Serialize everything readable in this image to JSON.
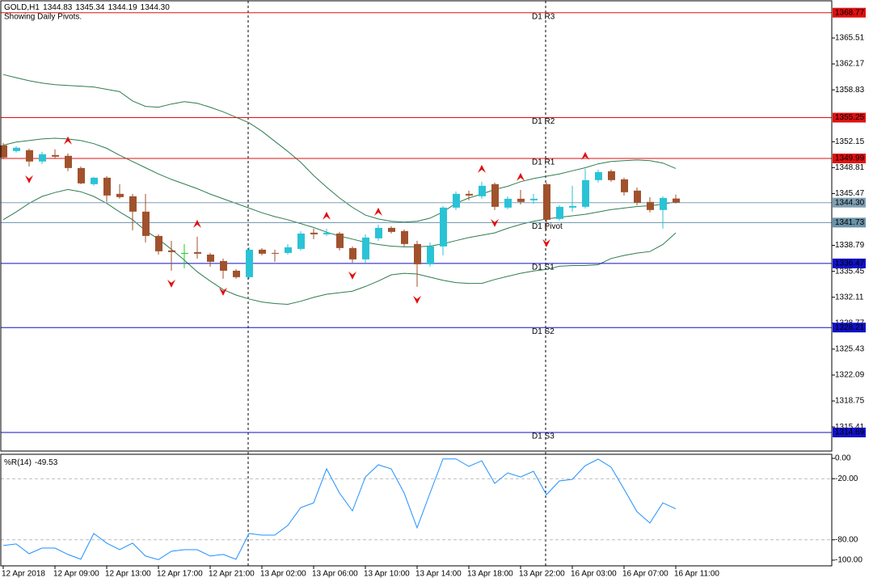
{
  "chart_data": [
    {
      "type": "candlestick",
      "title": "GOLD,H1",
      "header_values": [
        "1344.83",
        "1345.34",
        "1344.19",
        "1344.30"
      ],
      "subtitle": "Showing Daily Pivots.",
      "categories": [
        "12 Apr 2018",
        null,
        null,
        null,
        "12 Apr 09:00",
        null,
        null,
        null,
        "12 Apr 13:00",
        null,
        null,
        null,
        "12 Apr 17:00",
        null,
        null,
        null,
        "12 Apr 21:00",
        null,
        null,
        null,
        "13 Apr 02:00",
        null,
        null,
        null,
        "13 Apr 06:00",
        null,
        null,
        null,
        "13 Apr 10:00",
        null,
        null,
        null,
        "13 Apr 14:00",
        null,
        null,
        null,
        "13 Apr 18:00",
        null,
        null,
        null,
        "13 Apr 22:00",
        null,
        null,
        null,
        "16 Apr 03:00",
        null,
        null,
        null,
        "16 Apr 07:00",
        null,
        null,
        null,
        "16 Apr 11:00"
      ],
      "open": [
        1351.68,
        1350.95,
        1351.06,
        1349.6,
        1350.43,
        1350.33,
        1348.76,
        1346.68,
        1347.51,
        1345.43,
        1345.12,
        1343.14,
        1340.01,
        1338.14,
        1337.82,
        1337.93,
        1337.61,
        1336.78,
        1335.53,
        1334.7,
        1338.24,
        1337.82,
        1337.82,
        1338.34,
        1340.43,
        1340.22,
        1340.32,
        1338.45,
        1336.99,
        1339.7,
        1341.05,
        1340.64,
        1338.97,
        1336.36,
        1338.66,
        1343.66,
        1345.43,
        1345.12,
        1346.68,
        1343.66,
        1344.8,
        1344.6,
        1346.68,
        1342.2,
        1343.66,
        1343.76,
        1347.2,
        1348.35,
        1347.3,
        1345.85,
        1344.39,
        1343.35,
        1344.83
      ],
      "high": [
        1351.99,
        1351.58,
        1351.26,
        1350.85,
        1351.16,
        1350.64,
        1348.97,
        1347.62,
        1347.72,
        1346.68,
        1345.43,
        1345.43,
        1340.22,
        1339.39,
        1338.97,
        1339.91,
        1337.82,
        1337.09,
        1335.74,
        1338.55,
        1338.45,
        1338.24,
        1338.97,
        1340.64,
        1340.95,
        1340.95,
        1340.53,
        1338.66,
        1340.22,
        1341.47,
        1341.26,
        1340.84,
        1339.39,
        1339.18,
        1343.87,
        1345.74,
        1345.85,
        1346.99,
        1346.89,
        1345.12,
        1345.95,
        1345.43,
        1346.89,
        1343.97,
        1346.47,
        1348.66,
        1348.56,
        1348.56,
        1347.51,
        1346.26,
        1345.01,
        1345.12,
        1345.34
      ],
      "low": [
        1349.91,
        1350.74,
        1348.97,
        1349.28,
        1350.01,
        1348.35,
        1346.68,
        1346.47,
        1344.39,
        1344.8,
        1340.74,
        1339.18,
        1337.61,
        1335.53,
        1335.84,
        1337.09,
        1336.05,
        1334.49,
        1334.49,
        1334.49,
        1337.51,
        1336.68,
        1337.61,
        1338.14,
        1339.59,
        1340.01,
        1338.14,
        1336.57,
        1336.57,
        1339.39,
        1340.32,
        1338.66,
        1333.45,
        1336.05,
        1337.51,
        1343.35,
        1344.6,
        1344.8,
        1343.35,
        1343.45,
        1344.07,
        1344.18,
        1340.74,
        1341.99,
        1343.14,
        1343.55,
        1346.89,
        1346.99,
        1345.22,
        1343.97,
        1343.03,
        1340.95,
        1344.19
      ],
      "close": [
        1350.12,
        1351.37,
        1349.6,
        1350.53,
        1350.22,
        1348.76,
        1346.78,
        1347.51,
        1345.22,
        1345.01,
        1343.14,
        1340.01,
        1338.03,
        1337.93,
        1337.82,
        1337.72,
        1336.68,
        1335.53,
        1334.7,
        1338.24,
        1337.72,
        1337.72,
        1338.55,
        1340.32,
        1340.22,
        1340.43,
        1338.45,
        1336.99,
        1339.8,
        1341.05,
        1340.53,
        1338.97,
        1336.36,
        1338.66,
        1343.66,
        1345.43,
        1345.22,
        1346.47,
        1343.76,
        1344.8,
        1344.39,
        1344.8,
        1342.09,
        1343.76,
        1343.87,
        1347.2,
        1348.24,
        1347.2,
        1345.64,
        1344.28,
        1343.35,
        1344.91,
        1344.3
      ],
      "colors": {
        "up": "#2ac3d6",
        "down": "#a0522d",
        "doji": "#22cc22"
      },
      "band_color": "#2e7d4f",
      "bands": [
        {
          "values": [
            1360.8,
            1360.4,
            1360.0,
            1359.7,
            1359.5,
            1359.4,
            1359.3,
            1359.2,
            1358.9,
            1358.6,
            1357.4,
            1356.7,
            1356.6,
            1357.0,
            1357.3,
            1357.1,
            1356.6,
            1356.0,
            1355.3,
            1354.6,
            1353.5,
            1352.2,
            1350.9,
            1349.5,
            1347.8,
            1346.3,
            1344.9,
            1343.7,
            1342.7,
            1342.2,
            1341.9,
            1341.8,
            1341.9,
            1342.3,
            1343.1,
            1344.2,
            1344.9,
            1345.4,
            1346.0,
            1346.4,
            1347.0,
            1347.4,
            1347.7,
            1348.0,
            1348.4,
            1348.8,
            1349.3,
            1349.6,
            1349.7,
            1349.8,
            1349.7,
            1349.4,
            1348.7
          ]
        },
        {
          "values": [
            1351.7,
            1352.1,
            1352.3,
            1352.5,
            1352.6,
            1352.5,
            1352.3,
            1351.9,
            1351.3,
            1350.4,
            1349.6,
            1348.8,
            1348.0,
            1347.3,
            1346.7,
            1346.1,
            1345.4,
            1344.8,
            1344.2,
            1343.6,
            1343.0,
            1342.5,
            1342.1,
            1341.6,
            1341.1,
            1340.5,
            1340.0,
            1339.6,
            1339.2,
            1338.9,
            1338.7,
            1338.6,
            1338.6,
            1338.7,
            1339.0,
            1339.4,
            1339.8,
            1340.1,
            1340.4,
            1341.0,
            1341.5,
            1341.9,
            1342.2,
            1342.4,
            1342.6,
            1342.8,
            1343.1,
            1343.4,
            1343.6,
            1343.8,
            1343.9,
            1344.1,
            1344.4
          ]
        },
        {
          "values": [
            1342.1,
            1343.1,
            1344.2,
            1345.1,
            1345.6,
            1346.0,
            1345.7,
            1345.1,
            1344.2,
            1343.1,
            1342.1,
            1340.7,
            1339.6,
            1338.3,
            1336.9,
            1335.4,
            1334.2,
            1333.1,
            1332.4,
            1331.9,
            1331.5,
            1331.3,
            1331.2,
            1331.6,
            1332.1,
            1332.5,
            1332.7,
            1332.9,
            1333.5,
            1334.2,
            1335.0,
            1335.2,
            1335.1,
            1334.7,
            1334.3,
            1334.0,
            1333.9,
            1333.9,
            1334.4,
            1334.8,
            1335.2,
            1335.5,
            1335.7,
            1336.1,
            1336.2,
            1336.2,
            1336.3,
            1337.1,
            1337.5,
            1337.8,
            1338.0,
            1338.9,
            1340.4
          ]
        }
      ],
      "fractals": {
        "up": [
          5,
          15,
          25,
          29,
          37,
          40,
          45
        ],
        "down": [
          2,
          13,
          17,
          27,
          32,
          38,
          42
        ],
        "color": "#e01010"
      },
      "levels": [
        {
          "name": "D1 R3",
          "value": 1368.77,
          "color": "#e01010"
        },
        {
          "name": "D1 R2",
          "value": 1355.25,
          "color": "#e01010"
        },
        {
          "name": "D1 R1",
          "value": 1349.99,
          "color": "#e01010"
        },
        {
          "name": "D1 Pivot",
          "value": 1341.73,
          "color": "#6a93a8"
        },
        {
          "name": "D1 S1",
          "value": 1336.47,
          "color": "#1010c8"
        },
        {
          "name": "D1 S2",
          "value": 1328.21,
          "color": "#1010c8"
        },
        {
          "name": "D1 S3",
          "value": 1314.69,
          "color": "#1010c8"
        }
      ],
      "current_price": {
        "value": 1344.3,
        "label": "1344.30",
        "color": "#7f9fb3"
      },
      "ylim": [
        1312.3,
        1370.3
      ],
      "yticks": [
        1365.51,
        1362.17,
        1358.83,
        1352.15,
        1348.81,
        1345.47,
        1338.79,
        1335.45,
        1332.11,
        1328.77,
        1325.43,
        1322.09,
        1318.75,
        1315.41
      ]
    },
    {
      "type": "line",
      "title": "%R(14)",
      "values": [
        -85.7,
        -84.1,
        -93.7,
        -88.1,
        -88.1,
        -94.4,
        -99.2,
        -73.8,
        -83.3,
        -89.7,
        -83.3,
        -96.0,
        -99.5,
        -91.3,
        -89.7,
        -89.7,
        -96.0,
        -94.4,
        -99.2,
        -73.8,
        -75.4,
        -75.4,
        -65.9,
        -48.4,
        -43.7,
        -10.3,
        -34.1,
        -51.6,
        -18.3,
        -6.3,
        -10.3,
        -34.1,
        -68.3,
        -34.1,
        -0.5,
        -0.5,
        -7.9,
        -2.4,
        -24.6,
        -14.3,
        -18.3,
        -12.7,
        -35.7,
        -22.2,
        -20.6,
        -7.1,
        -0.8,
        -8.7,
        -30.2,
        -52.4,
        -63.5,
        -43.7,
        -49.53
      ],
      "color": "#1e90ff",
      "levels": [
        -20,
        -80
      ],
      "ylim": [
        -105.6,
        4
      ],
      "yticks": [
        {
          "value": 0,
          "label": "0.00"
        },
        {
          "value": -20,
          "label": "-20.00"
        },
        {
          "value": -80,
          "label": "-80.00"
        },
        {
          "value": -100,
          "label": "-100.00"
        }
      ]
    }
  ]
}
